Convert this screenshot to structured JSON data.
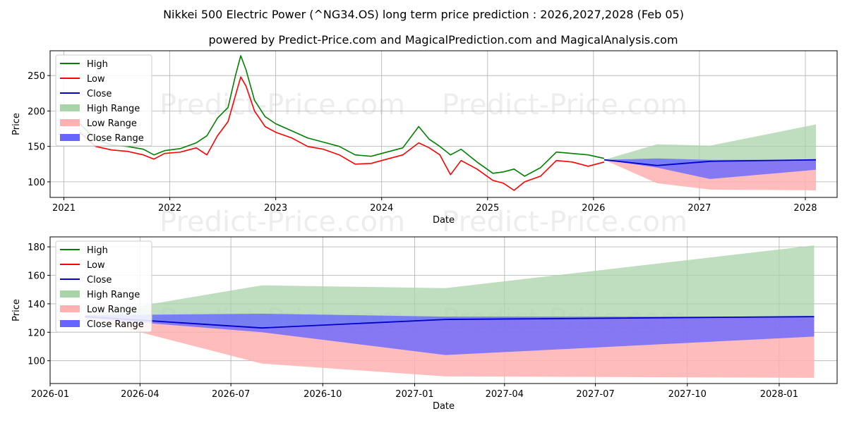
{
  "title": "Nikkei 500 Electric Power (^NG34.OS) long term price prediction : 2026,2027,2028 (Feb 05)",
  "subtitle": "powered by Predict-Price.com and MagicalPrediction.com and MagicalAnalysis.com",
  "watermark": "Predict-Price.com",
  "colors": {
    "high": "#008000",
    "low": "#ff0000",
    "close": "#0000cc",
    "high_range": "#a9d3a9",
    "low_range": "#ffb0b0",
    "close_range": "#6666ff"
  },
  "chart_data": [
    {
      "type": "line",
      "ylabel": "Price",
      "xlabel": "Date",
      "xlim": [
        2020.87,
        2028.3
      ],
      "ylim": [
        78,
        285
      ],
      "x_ticks": [
        2021,
        2022,
        2023,
        2024,
        2025,
        2026,
        2027,
        2028
      ],
      "x_tick_labels": [
        "2021",
        "2022",
        "2023",
        "2024",
        "2025",
        "2026",
        "2027",
        "2028"
      ],
      "y_ticks": [
        100,
        150,
        200,
        250
      ],
      "y_tick_labels": [
        "100",
        "150",
        "200",
        "250"
      ],
      "legend": [
        "High",
        "Low",
        "Close",
        "High Range",
        "Low Range",
        "Close Range"
      ],
      "legend_position": "top-left",
      "history": {
        "x": [
          2021.15,
          2021.3,
          2021.45,
          2021.6,
          2021.75,
          2021.85,
          2021.95,
          2022.1,
          2022.25,
          2022.35,
          2022.45,
          2022.55,
          2022.62,
          2022.67,
          2022.72,
          2022.8,
          2022.9,
          2023.0,
          2023.15,
          2023.3,
          2023.45,
          2023.6,
          2023.75,
          2023.9,
          2024.05,
          2024.2,
          2024.35,
          2024.45,
          2024.55,
          2024.65,
          2024.75,
          2024.9,
          2025.05,
          2025.15,
          2025.25,
          2025.35,
          2025.5,
          2025.65,
          2025.8,
          2025.95,
          2026.1
        ],
        "high": [
          182,
          160,
          152,
          150,
          146,
          138,
          144,
          147,
          155,
          165,
          190,
          205,
          250,
          278,
          258,
          215,
          192,
          182,
          172,
          162,
          156,
          150,
          138,
          136,
          142,
          148,
          178,
          160,
          150,
          138,
          146,
          128,
          112,
          114,
          118,
          108,
          120,
          142,
          140,
          138,
          133
        ],
        "low": [
          170,
          150,
          145,
          143,
          138,
          132,
          140,
          142,
          148,
          138,
          165,
          185,
          222,
          248,
          235,
          200,
          178,
          170,
          162,
          150,
          146,
          138,
          125,
          126,
          132,
          138,
          155,
          148,
          138,
          110,
          130,
          118,
          102,
          98,
          88,
          100,
          108,
          130,
          128,
          122,
          128
        ]
      },
      "forecast": {
        "x": [
          2026.1,
          2026.6,
          2027.1,
          2028.1
        ],
        "close": [
          131,
          123,
          129,
          131
        ],
        "high_range_upper": [
          131,
          153,
          151,
          181
        ],
        "low_range_lower": [
          131,
          98,
          89,
          88
        ],
        "close_range_upper": [
          131,
          133,
          131,
          131
        ],
        "close_range_lower": [
          131,
          120,
          104,
          117
        ]
      }
    },
    {
      "type": "area",
      "ylabel": "Price",
      "xlabel": "Date",
      "xlim": [
        "2026-01-01",
        "2028-02-28"
      ],
      "ylim": [
        84,
        187
      ],
      "x_ticks": [
        "2026-01",
        "2026-04",
        "2026-07",
        "2026-10",
        "2027-01",
        "2027-04",
        "2027-07",
        "2027-10",
        "2028-01"
      ],
      "y_ticks": [
        100,
        120,
        140,
        160,
        180
      ],
      "y_tick_labels": [
        "100",
        "120",
        "140",
        "160",
        "180"
      ],
      "legend": [
        "High",
        "Low",
        "Close",
        "High Range",
        "Low Range",
        "Close Range"
      ],
      "legend_position": "top-left",
      "forecast": {
        "x": [
          "2026-02-05",
          "2026-08-01",
          "2027-02-01",
          "2028-02-05"
        ],
        "close": [
          131,
          123,
          129,
          131
        ],
        "high_range_upper": [
          132,
          153,
          151,
          181
        ],
        "low_range_lower": [
          130,
          98,
          89,
          88
        ],
        "close_range_upper": [
          132,
          133,
          131,
          131
        ],
        "close_range_lower": [
          130,
          120,
          104,
          117
        ]
      }
    }
  ]
}
